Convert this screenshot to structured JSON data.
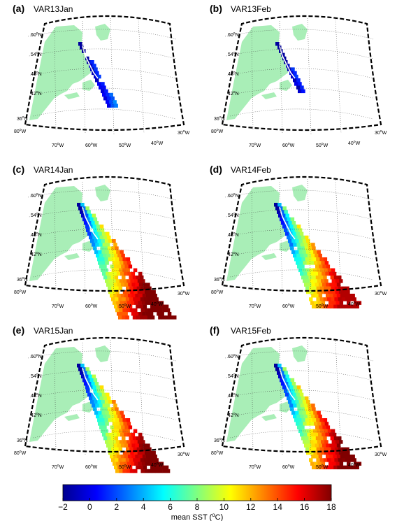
{
  "panels": [
    {
      "letter": "(a)",
      "title": "VAR13Jan"
    },
    {
      "letter": "(b)",
      "title": "VAR13Feb"
    },
    {
      "letter": "(c)",
      "title": "VAR14Jan"
    },
    {
      "letter": "(d)",
      "title": "VAR14Feb"
    },
    {
      "letter": "(e)",
      "title": "VAR15Jan"
    },
    {
      "letter": "(f)",
      "title": "VAR15Feb"
    }
  ],
  "map": {
    "lat_labels": [
      "60",
      "54",
      "48",
      "42",
      "36"
    ],
    "lon_labels": [
      "80",
      "70",
      "60",
      "50",
      "40",
      "30"
    ],
    "lat_suffix": "N",
    "lon_suffix": "W",
    "degree": "o",
    "land_color": "#a9eeb7"
  },
  "colorbar": {
    "ticks": [
      "−2",
      "0",
      "2",
      "4",
      "6",
      "8",
      "10",
      "12",
      "14",
      "16",
      "18"
    ],
    "label_prefix": "mean SST (",
    "label_sup": "o",
    "label_suffix": "C)",
    "min": -2,
    "max": 18,
    "colormap": "jet"
  }
}
